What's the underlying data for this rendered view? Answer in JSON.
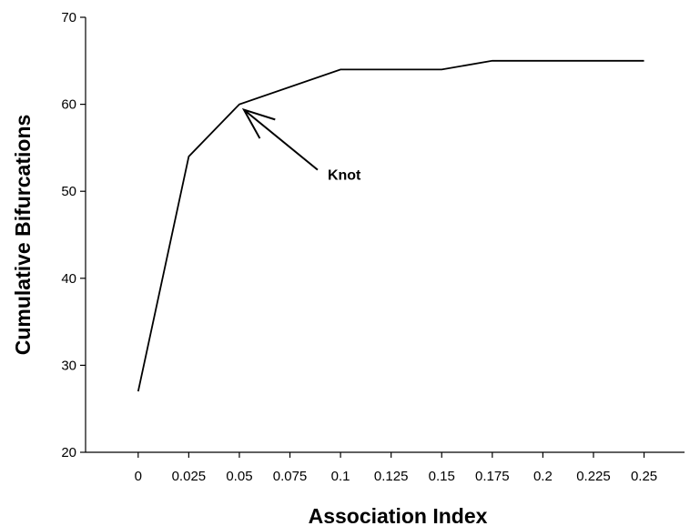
{
  "chart_data": {
    "type": "line",
    "title": "",
    "xlabel": "Association Index",
    "ylabel": "Cumulative Bifurcations",
    "x": [
      0,
      0.025,
      0.05,
      0.1,
      0.15,
      0.175,
      0.25
    ],
    "series": [
      {
        "values": [
          27,
          54,
          60,
          64,
          64,
          65,
          65
        ]
      }
    ],
    "xticks": [
      0,
      0.025,
      0.05,
      0.075,
      0.1,
      0.125,
      0.15,
      0.175,
      0.2,
      0.225,
      0.25
    ],
    "xtick_labels": [
      "0",
      "0.025",
      "0.05",
      "0.075",
      "0.1",
      "0.125",
      "0.15",
      "0.175",
      "0.2",
      "0.225",
      "0.25"
    ],
    "yticks": [
      20,
      30,
      40,
      50,
      60,
      70
    ],
    "ytick_labels": [
      "20",
      "30",
      "40",
      "50",
      "60",
      "70"
    ],
    "xlim": [
      -0.026,
      0.27
    ],
    "ylim": [
      20,
      70
    ],
    "grid": false,
    "legend": "none",
    "line_color": "#000000",
    "annotations": [
      {
        "text": "Knot",
        "x": 0.05,
        "y": 60,
        "arrow": true
      }
    ]
  }
}
